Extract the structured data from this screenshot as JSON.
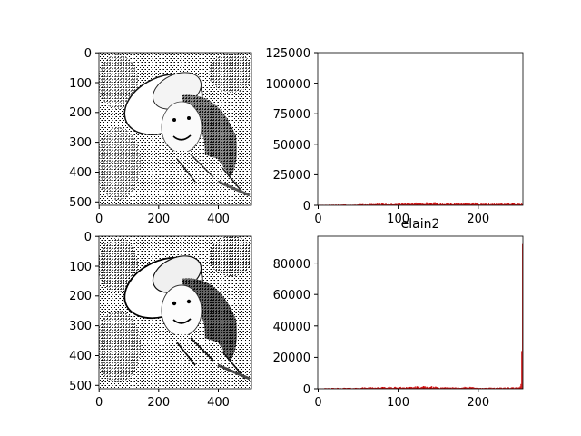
{
  "figure": {
    "background": "#ffffff"
  },
  "chart_data": [
    {
      "type": "image",
      "title": "",
      "xlabel": "",
      "ylabel": "",
      "x_ticks": [
        "0",
        "200",
        "400"
      ],
      "y_ticks": [
        "0",
        "100",
        "200",
        "300",
        "400",
        "500"
      ],
      "xlim": [
        0,
        512
      ],
      "ylim": [
        512,
        0
      ],
      "image_description": "grayscale halftone-dithered portrait of a woman in a wide-brimmed hat, smiling",
      "colormap": "gray"
    },
    {
      "type": "bar",
      "title": "",
      "xlabel": "",
      "ylabel": "",
      "color": "#cc0000",
      "x_ticks": [
        "0",
        "100",
        "200"
      ],
      "y_ticks": [
        "0",
        "25000",
        "50000",
        "75000",
        "100000",
        "125000"
      ],
      "xlim": [
        0,
        256
      ],
      "ylim": [
        0,
        125000
      ],
      "bin_ranges": [
        [
          0,
          50,
          200,
          600
        ],
        [
          50,
          100,
          600,
          1100
        ],
        [
          100,
          150,
          1100,
          1800
        ],
        [
          150,
          200,
          1000,
          1600
        ],
        [
          200,
          256,
          700,
          1300
        ]
      ]
    },
    {
      "type": "image",
      "title": "",
      "xlabel": "",
      "ylabel": "",
      "x_ticks": [
        "0",
        "200",
        "400"
      ],
      "y_ticks": [
        "0",
        "100",
        "200",
        "300",
        "400",
        "500"
      ],
      "xlim": [
        0,
        512
      ],
      "ylim": [
        512,
        0
      ],
      "image_description": "grayscale halftone-dithered portrait of a woman in a wide-brimmed hat, slightly higher contrast",
      "colormap": "gray"
    },
    {
      "type": "bar",
      "title": "elain2",
      "xlabel": "",
      "ylabel": "",
      "color": "#cc0000",
      "x_ticks": [
        "0",
        "100",
        "200"
      ],
      "y_ticks": [
        "0",
        "20000",
        "40000",
        "60000",
        "80000"
      ],
      "xlim": [
        0,
        256
      ],
      "ylim": [
        0,
        97000
      ],
      "bin_ranges": [
        [
          0,
          50,
          100,
          500
        ],
        [
          50,
          100,
          500,
          900
        ],
        [
          100,
          150,
          700,
          1200
        ],
        [
          150,
          200,
          500,
          900
        ],
        [
          200,
          252,
          300,
          700
        ]
      ],
      "spikes": [
        {
          "x": 252,
          "value": 1500
        },
        {
          "x": 253,
          "value": 3000
        },
        {
          "x": 254,
          "value": 24000
        },
        {
          "x": 255,
          "value": 92000
        }
      ]
    }
  ]
}
